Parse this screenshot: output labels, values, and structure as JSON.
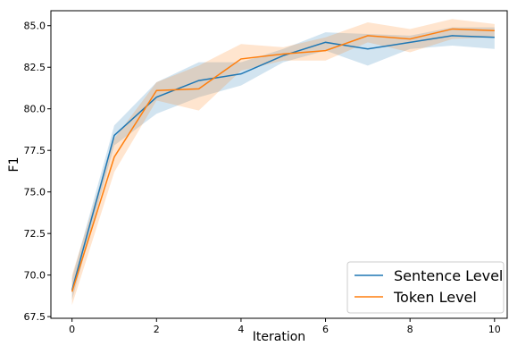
{
  "chart_data": {
    "type": "line",
    "title": "",
    "xlabel": "Iteration",
    "ylabel": "F1",
    "xlim": [
      -0.5,
      10.3
    ],
    "ylim": [
      67.4,
      85.9
    ],
    "xticks": [
      0,
      2,
      4,
      6,
      8,
      10
    ],
    "xtick_labels": [
      "0",
      "2",
      "4",
      "6",
      "8",
      "10"
    ],
    "yticks": [
      67.5,
      70.0,
      72.5,
      75.0,
      77.5,
      80.0,
      82.5,
      85.0
    ],
    "ytick_labels": [
      "67.5",
      "70.0",
      "72.5",
      "75.0",
      "77.5",
      "80.0",
      "82.5",
      "85.0"
    ],
    "grid": false,
    "legend_position": "bottom-right",
    "x": [
      0,
      1,
      2,
      3,
      4,
      5,
      6,
      7,
      8,
      9,
      10
    ],
    "series": [
      {
        "name": "Sentence Level",
        "color": "#1f77b4",
        "values": [
          69.1,
          78.4,
          80.7,
          81.7,
          82.1,
          83.2,
          84.0,
          83.6,
          84.0,
          84.4,
          84.3
        ],
        "band_lower": [
          68.5,
          77.8,
          79.7,
          80.7,
          81.4,
          82.8,
          83.5,
          82.6,
          83.6,
          83.8,
          83.6
        ],
        "band_upper": [
          69.8,
          79.0,
          81.6,
          82.8,
          82.8,
          83.6,
          84.6,
          84.5,
          84.4,
          84.9,
          84.9
        ]
      },
      {
        "name": "Token Level",
        "color": "#ff7f0e",
        "values": [
          69.0,
          77.1,
          81.1,
          81.2,
          83.0,
          83.3,
          83.5,
          84.4,
          84.2,
          84.8,
          84.7
        ],
        "band_lower": [
          68.2,
          76.2,
          80.5,
          79.9,
          82.3,
          82.9,
          82.9,
          84.0,
          83.4,
          84.2,
          84.3
        ],
        "band_upper": [
          70.0,
          78.2,
          81.6,
          82.6,
          83.9,
          83.7,
          84.3,
          85.2,
          84.8,
          85.4,
          85.1
        ]
      }
    ]
  }
}
